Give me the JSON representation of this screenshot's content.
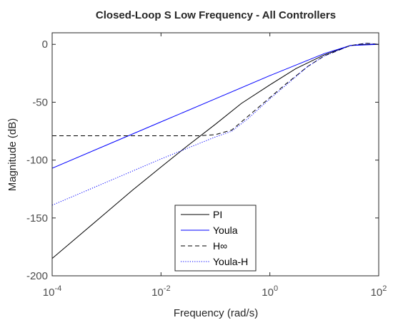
{
  "chart_data": {
    "type": "line",
    "title": "Closed-Loop S Low Frequency - All Controllers",
    "xlabel": "Frequency (rad/s)",
    "ylabel": "Magnitude (dB)",
    "xscale": "log",
    "xlim": [
      0.0001,
      100
    ],
    "ylim": [
      -200,
      10
    ],
    "x_ticks": [
      {
        "value": 0.0001,
        "base": "10",
        "exp": "-4"
      },
      {
        "value": 0.01,
        "base": "10",
        "exp": "-2"
      },
      {
        "value": 1,
        "base": "10",
        "exp": "0"
      },
      {
        "value": 100,
        "base": "10",
        "exp": "2"
      }
    ],
    "y_ticks": [
      0,
      -50,
      -100,
      -150,
      -200
    ],
    "y_tick_labels": [
      "0",
      "-50",
      "-100",
      "-150",
      "-200"
    ],
    "grid": false,
    "legend_position": "bottom-center",
    "series": [
      {
        "name": "PI",
        "color": "#000000",
        "dash": "solid",
        "x": [
          0.0001,
          0.0003,
          0.001,
          0.003,
          0.01,
          0.03,
          0.1,
          0.3,
          1,
          3,
          10,
          30,
          60,
          100
        ],
        "y": [
          -185,
          -166,
          -145,
          -126,
          -106,
          -88,
          -69,
          -51,
          -35,
          -21,
          -9,
          -1,
          0,
          0
        ]
      },
      {
        "name": "Youla",
        "color": "#0000ff",
        "dash": "solid",
        "x": [
          0.0001,
          0.001,
          0.01,
          0.1,
          1,
          10,
          30,
          100
        ],
        "y": [
          -107,
          -87,
          -67,
          -47,
          -27,
          -8,
          -1,
          0
        ]
      },
      {
        "name": "H∞",
        "color": "#000000",
        "dash": "dashed",
        "x": [
          0.0001,
          0.001,
          0.01,
          0.05,
          0.1,
          0.2,
          0.4,
          1,
          2,
          5,
          10,
          30,
          60,
          100
        ],
        "y": [
          -79,
          -79,
          -79,
          -79,
          -78,
          -74,
          -62,
          -46,
          -34,
          -19,
          -10,
          -1,
          1,
          0
        ]
      },
      {
        "name": "Youla-H",
        "color": "#0000ff",
        "dash": "dotted",
        "x": [
          0.0001,
          0.001,
          0.01,
          0.1,
          0.2,
          0.4,
          1,
          2,
          5,
          10,
          30,
          60,
          100
        ],
        "y": [
          -139,
          -119,
          -99,
          -80,
          -75,
          -64,
          -47,
          -35,
          -19,
          -10,
          -1,
          1,
          0
        ]
      }
    ]
  }
}
